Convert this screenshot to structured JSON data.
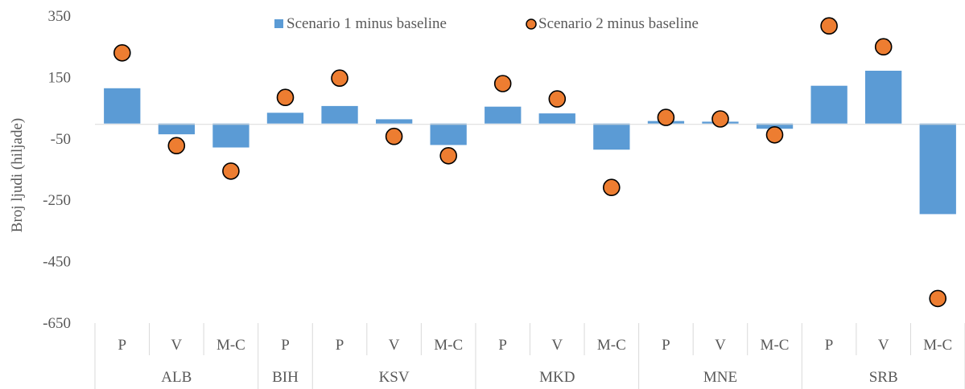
{
  "chart_data": {
    "type": "bar",
    "ylabel": "Broj ljudi (hiljade)",
    "ylim": [
      -650,
      350
    ],
    "yticks": [
      350,
      150,
      -50,
      -250,
      -450,
      -650
    ],
    "grid": false,
    "legend_position": "top",
    "categories": [
      "P",
      "V",
      "M-C",
      "P",
      "P",
      "V",
      "M-C",
      "P",
      "V",
      "M-C",
      "P",
      "V",
      "M-C",
      "P",
      "V",
      "M-C"
    ],
    "groups": [
      {
        "label": "ALB",
        "count": 3
      },
      {
        "label": "BIH",
        "count": 1
      },
      {
        "label": "KSV",
        "count": 3
      },
      {
        "label": "MKD",
        "count": 3
      },
      {
        "label": "MNE",
        "count": 3
      },
      {
        "label": "SRB",
        "count": 3
      }
    ],
    "series": [
      {
        "name": "Scenario 1 minus baseline",
        "kind": "bar",
        "color": "#5B9BD5",
        "values": [
          115,
          -35,
          -78,
          35,
          57,
          14,
          -70,
          55,
          33,
          -85,
          8,
          6,
          -17,
          123,
          172,
          -295
        ]
      },
      {
        "name": "Scenario 2 minus baseline",
        "kind": "marker",
        "color": "#ED7D31",
        "values": [
          230,
          -72,
          -155,
          85,
          148,
          -42,
          -105,
          130,
          80,
          -208,
          20,
          15,
          -37,
          318,
          250,
          -570
        ]
      }
    ]
  }
}
